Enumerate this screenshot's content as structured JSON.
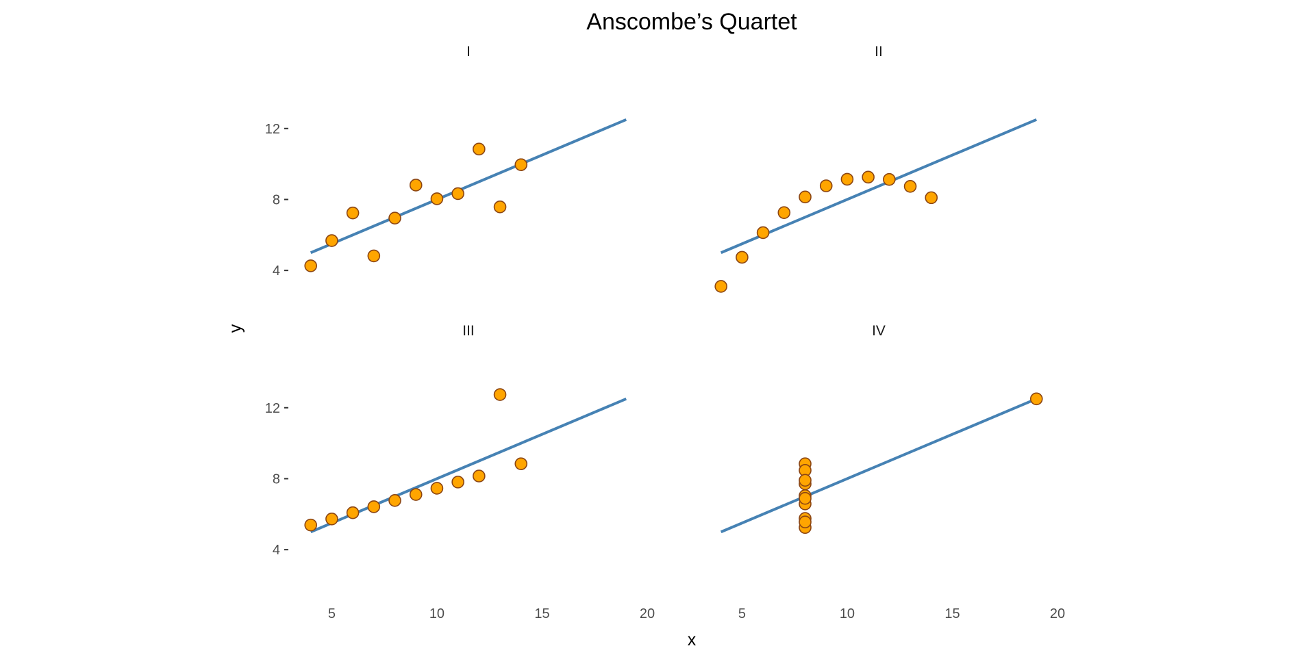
{
  "chart_data": {
    "type": "scatter",
    "title": "Anscombe’s Quartet",
    "xlabel": "x",
    "ylabel": "y",
    "xlim": [
      3,
      20
    ],
    "ylim": [
      2,
      15
    ],
    "x_ticks": [
      5,
      10,
      15,
      20
    ],
    "y_ticks": [
      4,
      8,
      12
    ],
    "grid": false,
    "point_fill": "#FFA500",
    "point_stroke": "#8B4513",
    "line_color": "#4682B4",
    "panels": [
      {
        "name": "I",
        "x": [
          4,
          5,
          6,
          7,
          8,
          9,
          10,
          11,
          12,
          13,
          14
        ],
        "y": [
          4.26,
          5.68,
          7.24,
          4.82,
          6.95,
          8.81,
          8.04,
          8.33,
          10.84,
          7.58,
          9.96
        ],
        "fit": {
          "x": [
            4,
            19
          ],
          "y": [
            5.0,
            12.5
          ]
        }
      },
      {
        "name": "II",
        "x": [
          4,
          5,
          6,
          7,
          8,
          9,
          10,
          11,
          12,
          13,
          14
        ],
        "y": [
          3.1,
          4.74,
          6.13,
          7.26,
          8.14,
          8.77,
          9.14,
          9.26,
          9.13,
          8.74,
          8.1
        ],
        "fit": {
          "x": [
            4,
            19
          ],
          "y": [
            5.0,
            12.5
          ]
        }
      },
      {
        "name": "III",
        "x": [
          4,
          5,
          6,
          7,
          8,
          9,
          10,
          11,
          12,
          13,
          14
        ],
        "y": [
          5.39,
          5.73,
          6.08,
          6.42,
          6.77,
          7.11,
          7.46,
          7.81,
          8.15,
          12.74,
          8.84
        ],
        "fit": {
          "x": [
            4,
            19
          ],
          "y": [
            5.0,
            12.5
          ]
        }
      },
      {
        "name": "IV",
        "x": [
          8,
          8,
          8,
          8,
          8,
          8,
          8,
          8,
          8,
          8,
          19
        ],
        "y": [
          6.58,
          5.76,
          7.71,
          8.84,
          8.47,
          7.04,
          5.25,
          5.56,
          7.91,
          6.89,
          12.5
        ],
        "fit": {
          "x": [
            4,
            19
          ],
          "y": [
            5.0,
            12.5
          ]
        }
      }
    ]
  }
}
